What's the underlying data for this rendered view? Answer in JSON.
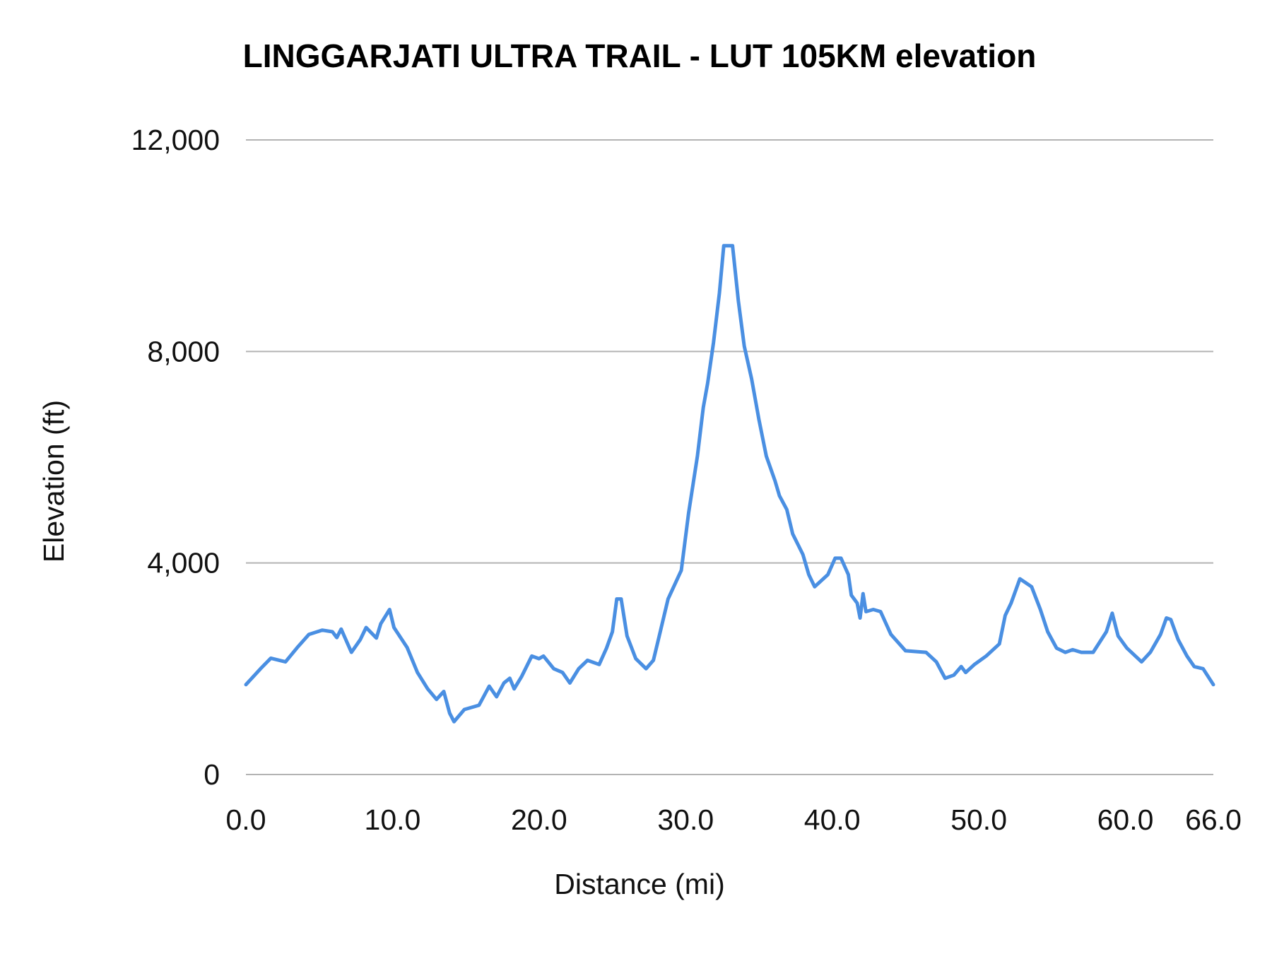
{
  "chart_data": {
    "type": "line",
    "title": "LINGGARJATI ULTRA TRAIL - LUT 105KM elevation",
    "xlabel": "Distance (mi)",
    "ylabel": "Elevation (ft)",
    "xlim": [
      0,
      66
    ],
    "ylim": [
      0,
      12000
    ],
    "xticks": [
      "0.0",
      "10.0",
      "20.0",
      "30.0",
      "40.0",
      "50.0",
      "60.0",
      "66.0"
    ],
    "xtick_values": [
      0,
      10,
      20,
      30,
      40,
      50,
      60,
      66
    ],
    "yticks": [
      "0",
      "4,000",
      "8,000",
      "12,000"
    ],
    "ytick_values": [
      0,
      4000,
      8000,
      12000
    ],
    "grid": "horizontal",
    "line_color": "#4a8fe2",
    "grid_color": "#b3b3b3",
    "series": [
      {
        "x": [
          0,
          1.0,
          1.7,
          2.7,
          3.5,
          4.3,
          5.2,
          5.9,
          6.2,
          6.5,
          7.2,
          7.8,
          8.2,
          8.9,
          9.2,
          9.8,
          10.1,
          11.0,
          11.7,
          12.4,
          13.0,
          13.5,
          13.9,
          14.2,
          14.9,
          15.9,
          16.6,
          17.1,
          17.6,
          18.0,
          18.3,
          18.8,
          19.5,
          20.0,
          20.3,
          21.0,
          21.6,
          22.1,
          22.7,
          23.3,
          24.1,
          24.6,
          25.0,
          25.3,
          25.6,
          26.0,
          26.6,
          27.3,
          27.8,
          28.2,
          28.8,
          29.7,
          30.2,
          30.8,
          31.2,
          31.5,
          31.9,
          32.3,
          32.6,
          33.2,
          33.6,
          34.0,
          34.5,
          35.0,
          35.5,
          36.1,
          36.4,
          36.9,
          37.3,
          38.0,
          38.4,
          38.8,
          39.7,
          40.2,
          40.6,
          41.1,
          41.3,
          41.7,
          41.9,
          42.1,
          42.3,
          42.8,
          43.3,
          44.0,
          45.0,
          46.4,
          47.1,
          47.7,
          48.3,
          48.8,
          49.1,
          49.7,
          50.5,
          51.4,
          51.8,
          52.2,
          52.8,
          53.6,
          54.2,
          54.7,
          55.3,
          55.9,
          56.4,
          57.0,
          57.8,
          58.7,
          59.1,
          59.5,
          60.1,
          61.1,
          61.7,
          62.4,
          62.8,
          63.1,
          63.6,
          64.2,
          64.7,
          65.3,
          66.0
        ],
        "y": [
          1700,
          2000,
          2200,
          2130,
          2400,
          2650,
          2730,
          2700,
          2590,
          2750,
          2310,
          2550,
          2780,
          2580,
          2850,
          3120,
          2780,
          2400,
          1930,
          1620,
          1420,
          1570,
          1160,
          1000,
          1230,
          1310,
          1670,
          1470,
          1730,
          1820,
          1620,
          1850,
          2240,
          2190,
          2240,
          2000,
          1930,
          1730,
          2000,
          2160,
          2080,
          2390,
          2700,
          3320,
          3320,
          2620,
          2190,
          2000,
          2160,
          2620,
          3320,
          3860,
          4940,
          6020,
          6940,
          7400,
          8170,
          9100,
          10000,
          10000,
          8950,
          8100,
          7480,
          6710,
          6020,
          5550,
          5270,
          5010,
          4550,
          4160,
          3780,
          3550,
          3780,
          4090,
          4090,
          3780,
          3390,
          3240,
          2960,
          3420,
          3080,
          3120,
          3080,
          2650,
          2340,
          2310,
          2130,
          1820,
          1880,
          2040,
          1930,
          2080,
          2240,
          2470,
          3010,
          3240,
          3700,
          3550,
          3120,
          2700,
          2390,
          2310,
          2360,
          2310,
          2310,
          2700,
          3050,
          2620,
          2390,
          2130,
          2310,
          2650,
          2960,
          2930,
          2550,
          2240,
          2040,
          2000,
          1700
        ]
      }
    ]
  }
}
